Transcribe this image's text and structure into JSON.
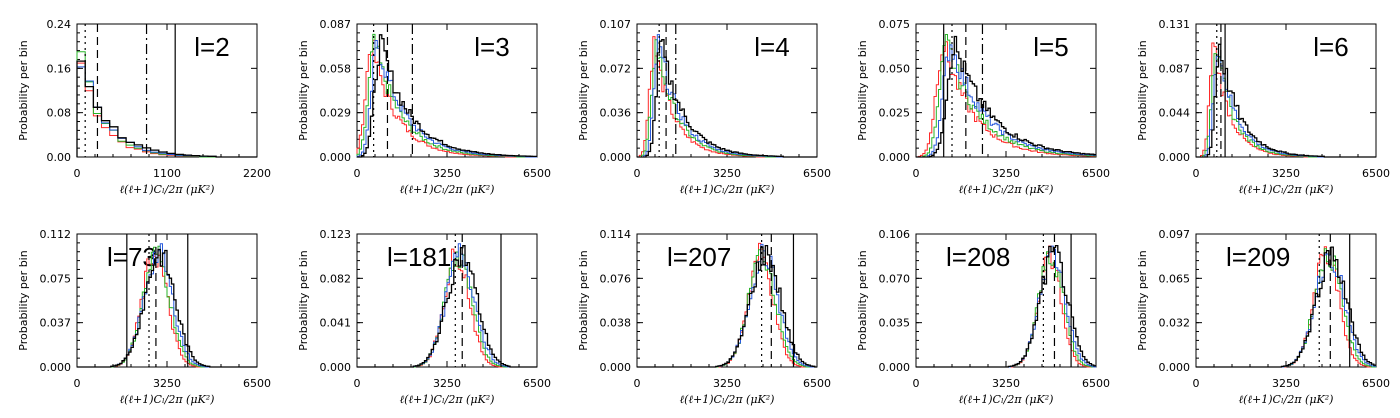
{
  "figure": {
    "ylabel": "Probability per bin",
    "xlabel": "ℓ(ℓ+1)Cₗ/2π (μK²)"
  },
  "chart_data": [
    {
      "type": "histogram",
      "title": "l=2",
      "xlim": [
        0,
        2200
      ],
      "xticks": [
        "0",
        "1100",
        "2200"
      ],
      "ylim": [
        0,
        0.24
      ],
      "yticks": [
        "0.00",
        "0.08",
        "0.16",
        "0.24"
      ],
      "peak": 120,
      "width": 300,
      "shape": "exp",
      "vlines": [
        {
          "x": 100,
          "style": "dotted"
        },
        {
          "x": 250,
          "style": "dashed"
        },
        {
          "x": 850,
          "style": "dashdot"
        },
        {
          "x": 1200,
          "style": "solid"
        }
      ]
    },
    {
      "type": "histogram",
      "title": "l=3",
      "xlim": [
        0,
        6500
      ],
      "xticks": [
        "0",
        "3250",
        "6500"
      ],
      "ylim": [
        0,
        0.087
      ],
      "yticks": [
        "0.000",
        "0.029",
        "0.058",
        "0.087"
      ],
      "peak": 700,
      "width": 900,
      "shape": "skew",
      "vlines": [
        {
          "x": 600,
          "style": "dotted"
        },
        {
          "x": 1100,
          "style": "dashed"
        },
        {
          "x": 2000,
          "style": "dashdot"
        }
      ]
    },
    {
      "type": "histogram",
      "title": "l=4",
      "xlim": [
        0,
        6500
      ],
      "xticks": [
        "0",
        "3250",
        "6500"
      ],
      "ylim": [
        0,
        0.107
      ],
      "yticks": [
        "0.000",
        "0.036",
        "0.072",
        "0.107"
      ],
      "peak": 750,
      "width": 700,
      "shape": "skew",
      "vlines": [
        {
          "x": 800,
          "style": "dotted"
        },
        {
          "x": 1050,
          "style": "dashed"
        },
        {
          "x": 1400,
          "style": "dashdot"
        }
      ]
    },
    {
      "type": "histogram",
      "title": "l=5",
      "xlim": [
        0,
        6500
      ],
      "xticks": [
        "0",
        "3250",
        "6500"
      ],
      "ylim": [
        0,
        0.075
      ],
      "yticks": [
        "0.000",
        "0.025",
        "0.050",
        "0.075"
      ],
      "peak": 1200,
      "width": 1100,
      "shape": "skew",
      "vlines": [
        {
          "x": 1000,
          "style": "solid"
        },
        {
          "x": 1300,
          "style": "dotted"
        },
        {
          "x": 1800,
          "style": "dashed"
        },
        {
          "x": 2400,
          "style": "dashdot"
        }
      ]
    },
    {
      "type": "histogram",
      "title": "l=6",
      "xlim": [
        0,
        6500
      ],
      "xticks": [
        "0",
        "3250",
        "6500"
      ],
      "ylim": [
        0,
        0.131
      ],
      "yticks": [
        "0.000",
        "0.044",
        "0.087",
        "0.131"
      ],
      "peak": 750,
      "width": 600,
      "shape": "skew",
      "vlines": [
        {
          "x": 750,
          "style": "dotted"
        },
        {
          "x": 900,
          "style": "dashed"
        },
        {
          "x": 1050,
          "style": "solid"
        }
      ]
    },
    {
      "type": "histogram",
      "title": "l=73",
      "xlim": [
        0,
        6500
      ],
      "xticks": [
        "0",
        "3250",
        "6500"
      ],
      "ylim": [
        0,
        0.112
      ],
      "yticks": [
        "0.000",
        "0.037",
        "0.075",
        "0.112"
      ],
      "peak": 2900,
      "width": 500,
      "shape": "gauss",
      "vlines": [
        {
          "x": 1800,
          "style": "solid"
        },
        {
          "x": 2600,
          "style": "dotted"
        },
        {
          "x": 2850,
          "style": "dashed"
        },
        {
          "x": 4000,
          "style": "solid"
        }
      ]
    },
    {
      "type": "histogram",
      "title": "l=181",
      "xlim": [
        0,
        6500
      ],
      "xticks": [
        "0",
        "3250",
        "6500"
      ],
      "ylim": [
        0,
        0.123
      ],
      "yticks": [
        "0.000",
        "0.041",
        "0.082",
        "0.123"
      ],
      "peak": 3700,
      "width": 500,
      "shape": "gauss",
      "vlines": [
        {
          "x": 3550,
          "style": "dotted"
        },
        {
          "x": 3800,
          "style": "dashed"
        },
        {
          "x": 5200,
          "style": "solid"
        }
      ]
    },
    {
      "type": "histogram",
      "title": "l=207",
      "xlim": [
        0,
        6500
      ],
      "xticks": [
        "0",
        "3250",
        "6500"
      ],
      "ylim": [
        0,
        0.114
      ],
      "yticks": [
        "0.000",
        "0.038",
        "0.076",
        "0.114"
      ],
      "peak": 4550,
      "width": 500,
      "shape": "gauss",
      "vlines": [
        {
          "x": 4500,
          "style": "dotted"
        },
        {
          "x": 4850,
          "style": "dashed"
        },
        {
          "x": 5650,
          "style": "solid"
        }
      ]
    },
    {
      "type": "histogram",
      "title": "l=208",
      "xlim": [
        0,
        6500
      ],
      "xticks": [
        "0",
        "3250",
        "6500"
      ],
      "ylim": [
        0,
        0.106
      ],
      "yticks": [
        "0.000",
        "0.035",
        "0.070",
        "0.106"
      ],
      "peak": 4900,
      "width": 450,
      "shape": "gauss",
      "vlines": [
        {
          "x": 4600,
          "style": "dotted"
        },
        {
          "x": 5000,
          "style": "dashed"
        },
        {
          "x": 5600,
          "style": "solid"
        }
      ]
    },
    {
      "type": "histogram",
      "title": "l=209",
      "xlim": [
        0,
        6500
      ],
      "xticks": [
        "0",
        "3250",
        "6500"
      ],
      "ylim": [
        0,
        0.097
      ],
      "yticks": [
        "0.000",
        "0.032",
        "0.065",
        "0.097"
      ],
      "peak": 4800,
      "width": 500,
      "shape": "gauss",
      "vlines": [
        {
          "x": 4450,
          "style": "dotted"
        },
        {
          "x": 4850,
          "style": "dashed"
        },
        {
          "x": 5550,
          "style": "solid"
        }
      ]
    }
  ],
  "series_colors": [
    "#ff2a2a",
    "#2ab52a",
    "#2a5adc",
    "#000000"
  ]
}
